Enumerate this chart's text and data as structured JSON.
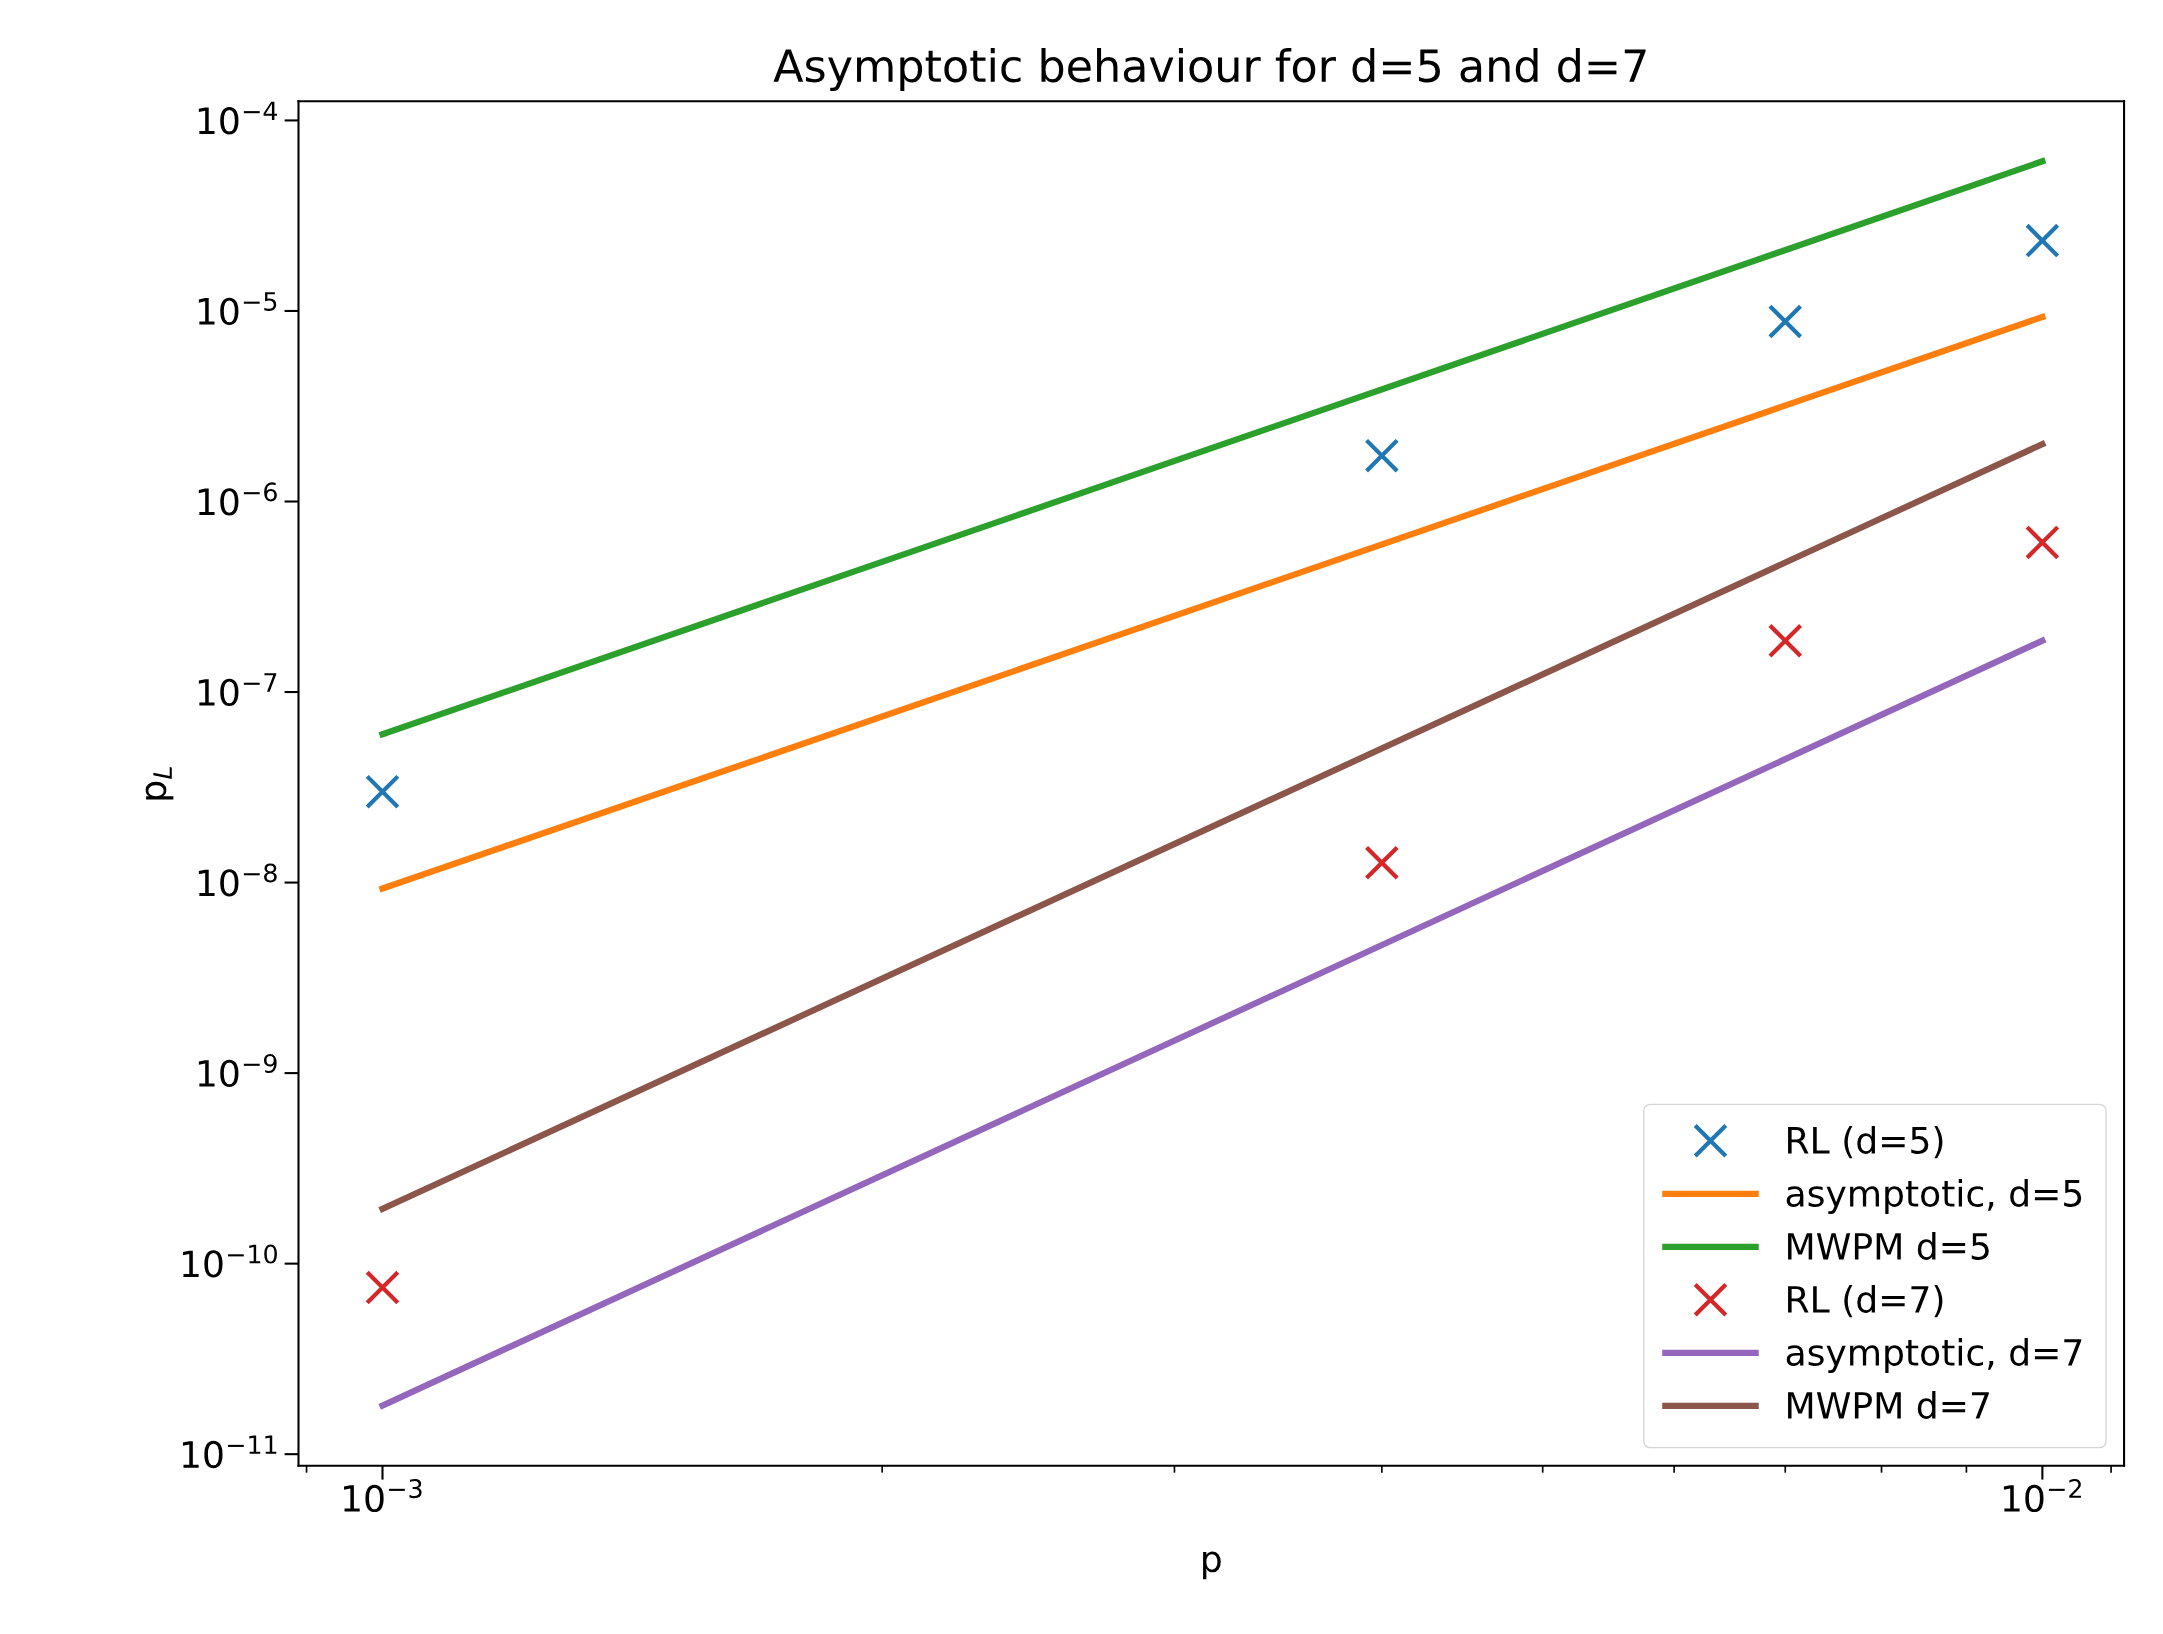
{
  "chart_data": {
    "type": "scatter",
    "title": "Asymptotic behaviour for d=5 and d=7",
    "xlabel": "p",
    "ylabel": "p$_{L}$",
    "log": "xy",
    "legend": "bottom right",
    "grid": false,
    "xlim": [
      0.00089,
      0.0112
    ],
    "ylim": [
      8.7e-12,
      0.000126
    ],
    "xticks": [
      {
        "value": 0.0009,
        "label": null
      },
      {
        "value": 0.001,
        "label": "10$^{−3}$"
      },
      {
        "value": 0.002,
        "label": null
      },
      {
        "value": 0.003,
        "label": null
      },
      {
        "value": 0.004,
        "label": null
      },
      {
        "value": 0.005,
        "label": null
      },
      {
        "value": 0.006,
        "label": null
      },
      {
        "value": 0.007,
        "label": null
      },
      {
        "value": 0.008,
        "label": null
      },
      {
        "value": 0.009,
        "label": null
      },
      {
        "value": 0.01,
        "label": "10$^{−2}$"
      },
      {
        "value": 0.011,
        "label": null
      }
    ],
    "yticks": [
      {
        "value": 1e-11,
        "label": "10$^{−11}$"
      },
      {
        "value": 1e-10,
        "label": "10$^{−10}$"
      },
      {
        "value": 1e-09,
        "label": "10$^{−9}$"
      },
      {
        "value": 1e-08,
        "label": "10$^{−8}$"
      },
      {
        "value": 1e-07,
        "label": "10$^{−7}$"
      },
      {
        "value": 1e-06,
        "label": "10$^{−6}$"
      },
      {
        "value": 1e-05,
        "label": "10$^{−5}$"
      },
      {
        "value": 0.0001,
        "label": "10$^{−4}$"
      }
    ],
    "series": [
      {
        "name": "RL (d=5)",
        "marker": "cross",
        "color": "#1f77b4",
        "x": [
          0.001,
          0.004,
          0.007,
          0.01
        ],
        "values": [
          3e-08,
          1.74e-06,
          8.8e-06,
          2.34e-05
        ]
      },
      {
        "name": "asymptotic, d=5",
        "type": "line",
        "marker": "none",
        "color": "#ff7f0e",
        "x": [
          0.001,
          0.01
        ],
        "values": [
          9.3e-09,
          9.3e-06
        ]
      },
      {
        "name": "MWPM d=5",
        "type": "line",
        "marker": "none",
        "color": "#2ca02c",
        "x": [
          0.001,
          0.01
        ],
        "values": [
          6e-08,
          6.1e-05
        ]
      },
      {
        "name": "RL (d=7)",
        "marker": "cross",
        "color": "#d62728",
        "x": [
          0.001,
          0.004,
          0.007,
          0.01
        ],
        "values": [
          7.5e-11,
          1.27e-08,
          1.86e-07,
          6.1e-07
        ]
      },
      {
        "name": "asymptotic, d=7",
        "type": "line",
        "marker": "none",
        "color": "#9467bd",
        "x": [
          0.001,
          0.01
        ],
        "values": [
          1.8e-11,
          1.86e-07
        ]
      },
      {
        "name": "MWPM d=7",
        "type": "line",
        "marker": "none",
        "color": "#8c564b",
        "x": [
          0.001,
          0.01
        ],
        "values": [
          1.94e-10,
          2e-06
        ]
      }
    ]
  }
}
